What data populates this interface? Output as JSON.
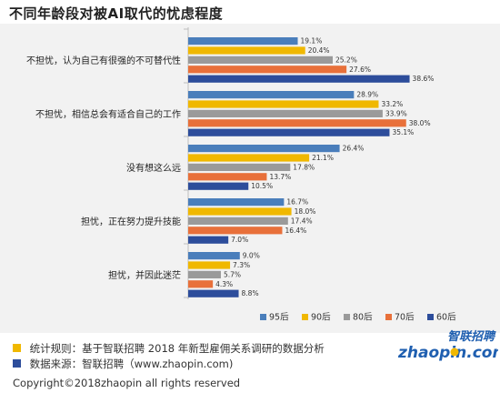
{
  "title": "不同年龄段对被AI取代的忧虑程度",
  "chart_data": {
    "type": "bar",
    "orientation": "horizontal",
    "categories": [
      "不担忧，认为自己有很强的不可替代性",
      "不担忧，相信总会有适合自己的工作",
      "没有想这么远",
      "担忧，正在努力提升技能",
      "担忧，并因此迷茫"
    ],
    "series": [
      {
        "name": "95后",
        "color": "#4a7ebb",
        "values": [
          19.1,
          28.9,
          26.4,
          16.7,
          9.0
        ]
      },
      {
        "name": "90后",
        "color": "#f0b800",
        "values": [
          20.4,
          33.2,
          21.1,
          18.0,
          7.3
        ]
      },
      {
        "name": "80后",
        "color": "#9a9a9a",
        "values": [
          25.2,
          33.9,
          17.8,
          17.4,
          5.7
        ]
      },
      {
        "name": "70后",
        "color": "#e8703a",
        "values": [
          27.6,
          38.0,
          13.7,
          16.4,
          4.3
        ]
      },
      {
        "name": "60后",
        "color": "#2d4d9b",
        "values": [
          38.6,
          35.1,
          10.5,
          7.0,
          8.8
        ]
      }
    ],
    "value_suffix": "%",
    "xlim": [
      0,
      42
    ],
    "legend_position": "bottom"
  },
  "footer": {
    "rule_text": "统计规则：基于智联招聘 2018 年新型雇佣关系调研的数据分析",
    "rule_color": "#f0b800",
    "source_text": "数据来源：智联招聘（www.zhaopin.com)",
    "source_color": "#2d4d9b"
  },
  "logo": {
    "cn": "智联招聘",
    "en": "zhaopin.com",
    "color": "#1f5fb0",
    "accent": "#f0b800"
  },
  "copyright": "Copyright©2018zhaopin all rights reserved"
}
